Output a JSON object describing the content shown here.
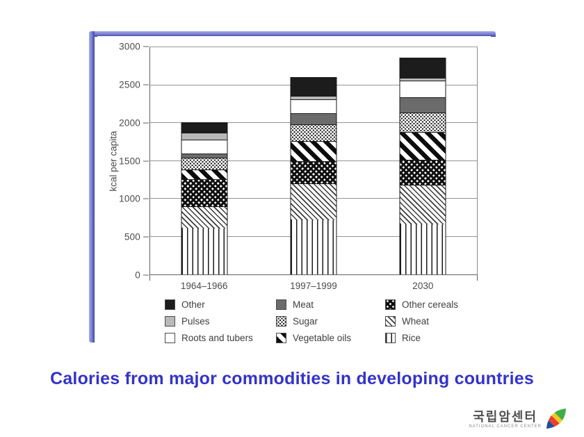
{
  "slide": {
    "title": "Calories from major commodities in developing countries",
    "title_color": "#3433c9"
  },
  "chart_data": {
    "type": "bar",
    "stacked": true,
    "title": "",
    "xlabel": "",
    "ylabel": "kcal per capita",
    "categories": [
      "1964–1966",
      "1997–1999",
      "2030"
    ],
    "ylim": [
      0,
      3000
    ],
    "yticks": [
      0,
      500,
      1000,
      1500,
      2000,
      2500,
      3000
    ],
    "grid": true,
    "legend_position": "bottom",
    "series": [
      {
        "name": "Rice",
        "pattern": "vlines",
        "values": [
          610,
          720,
          660
        ]
      },
      {
        "name": "Wheat",
        "pattern": "thin-diag",
        "values": [
          290,
          480,
          525
        ]
      },
      {
        "name": "Other cereals",
        "pattern": "crosshatch",
        "values": [
          355,
          300,
          330
        ]
      },
      {
        "name": "Vegetable oils",
        "pattern": "bold-diag",
        "values": [
          130,
          260,
          365
        ]
      },
      {
        "name": "Sugar",
        "pattern": "dots",
        "values": [
          155,
          220,
          260
        ]
      },
      {
        "name": "Meat",
        "pattern": "solid-darkgray",
        "values": [
          60,
          150,
          200
        ]
      },
      {
        "name": "Roots and tubers",
        "pattern": "solid-white",
        "values": [
          180,
          180,
          220
        ]
      },
      {
        "name": "Pulses",
        "pattern": "solid-lightgray",
        "values": [
          95,
          50,
          40
        ]
      },
      {
        "name": "Other",
        "pattern": "solid-black",
        "values": [
          125,
          240,
          250
        ]
      }
    ],
    "totals": [
      2000,
      2600,
      2850
    ],
    "legend_order": [
      "Other",
      "Meat",
      "Other cereals",
      "Pulses",
      "Sugar",
      "Wheat",
      "Roots and tubers",
      "Vegetable oils",
      "Rice"
    ]
  },
  "logo": {
    "korean": "국립암센터",
    "english": "NATIONAL CANCER CENTER",
    "leaf_colors": {
      "green": "#3fae49",
      "yellow": "#f6c81f",
      "red": "#e8412c",
      "blue": "#1f4e9c"
    }
  }
}
